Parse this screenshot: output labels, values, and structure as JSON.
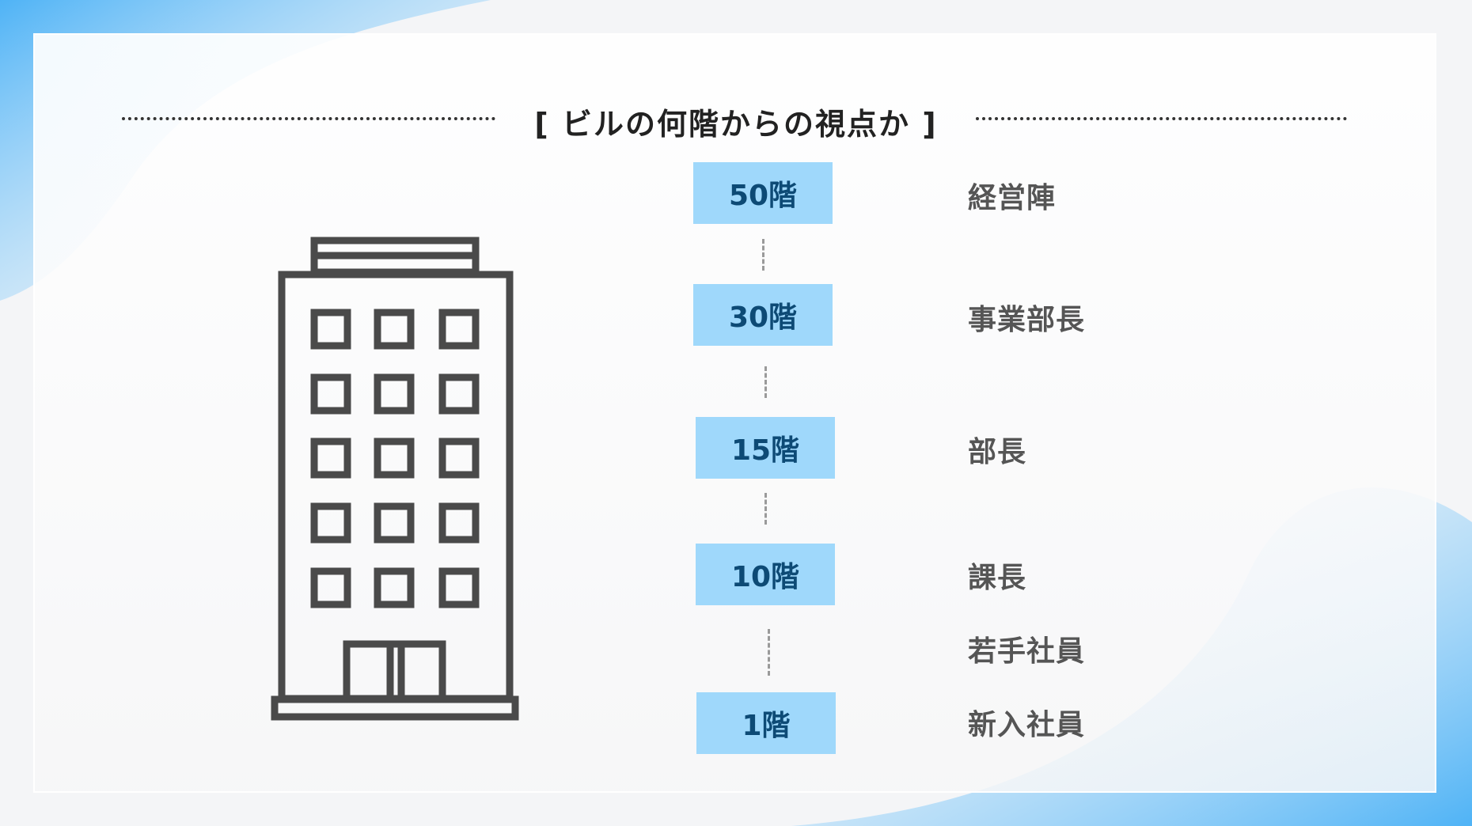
{
  "title": "[ ビルの何階からの視点か ]",
  "colors": {
    "floor_box": "#9fd8fb",
    "floor_text": "#0d4a75",
    "role_text": "#555555",
    "building_stroke": "#4a4a4a"
  },
  "icon": "office-building-icon",
  "floors": [
    {
      "label": "50階",
      "role": "経営陣"
    },
    {
      "label": "30階",
      "role": "事業部長"
    },
    {
      "label": "15階",
      "role": "部長"
    },
    {
      "label": "10階",
      "role": "課長"
    },
    {
      "label": "1階",
      "role": "新入社員"
    }
  ],
  "extra_role": "若手社員"
}
